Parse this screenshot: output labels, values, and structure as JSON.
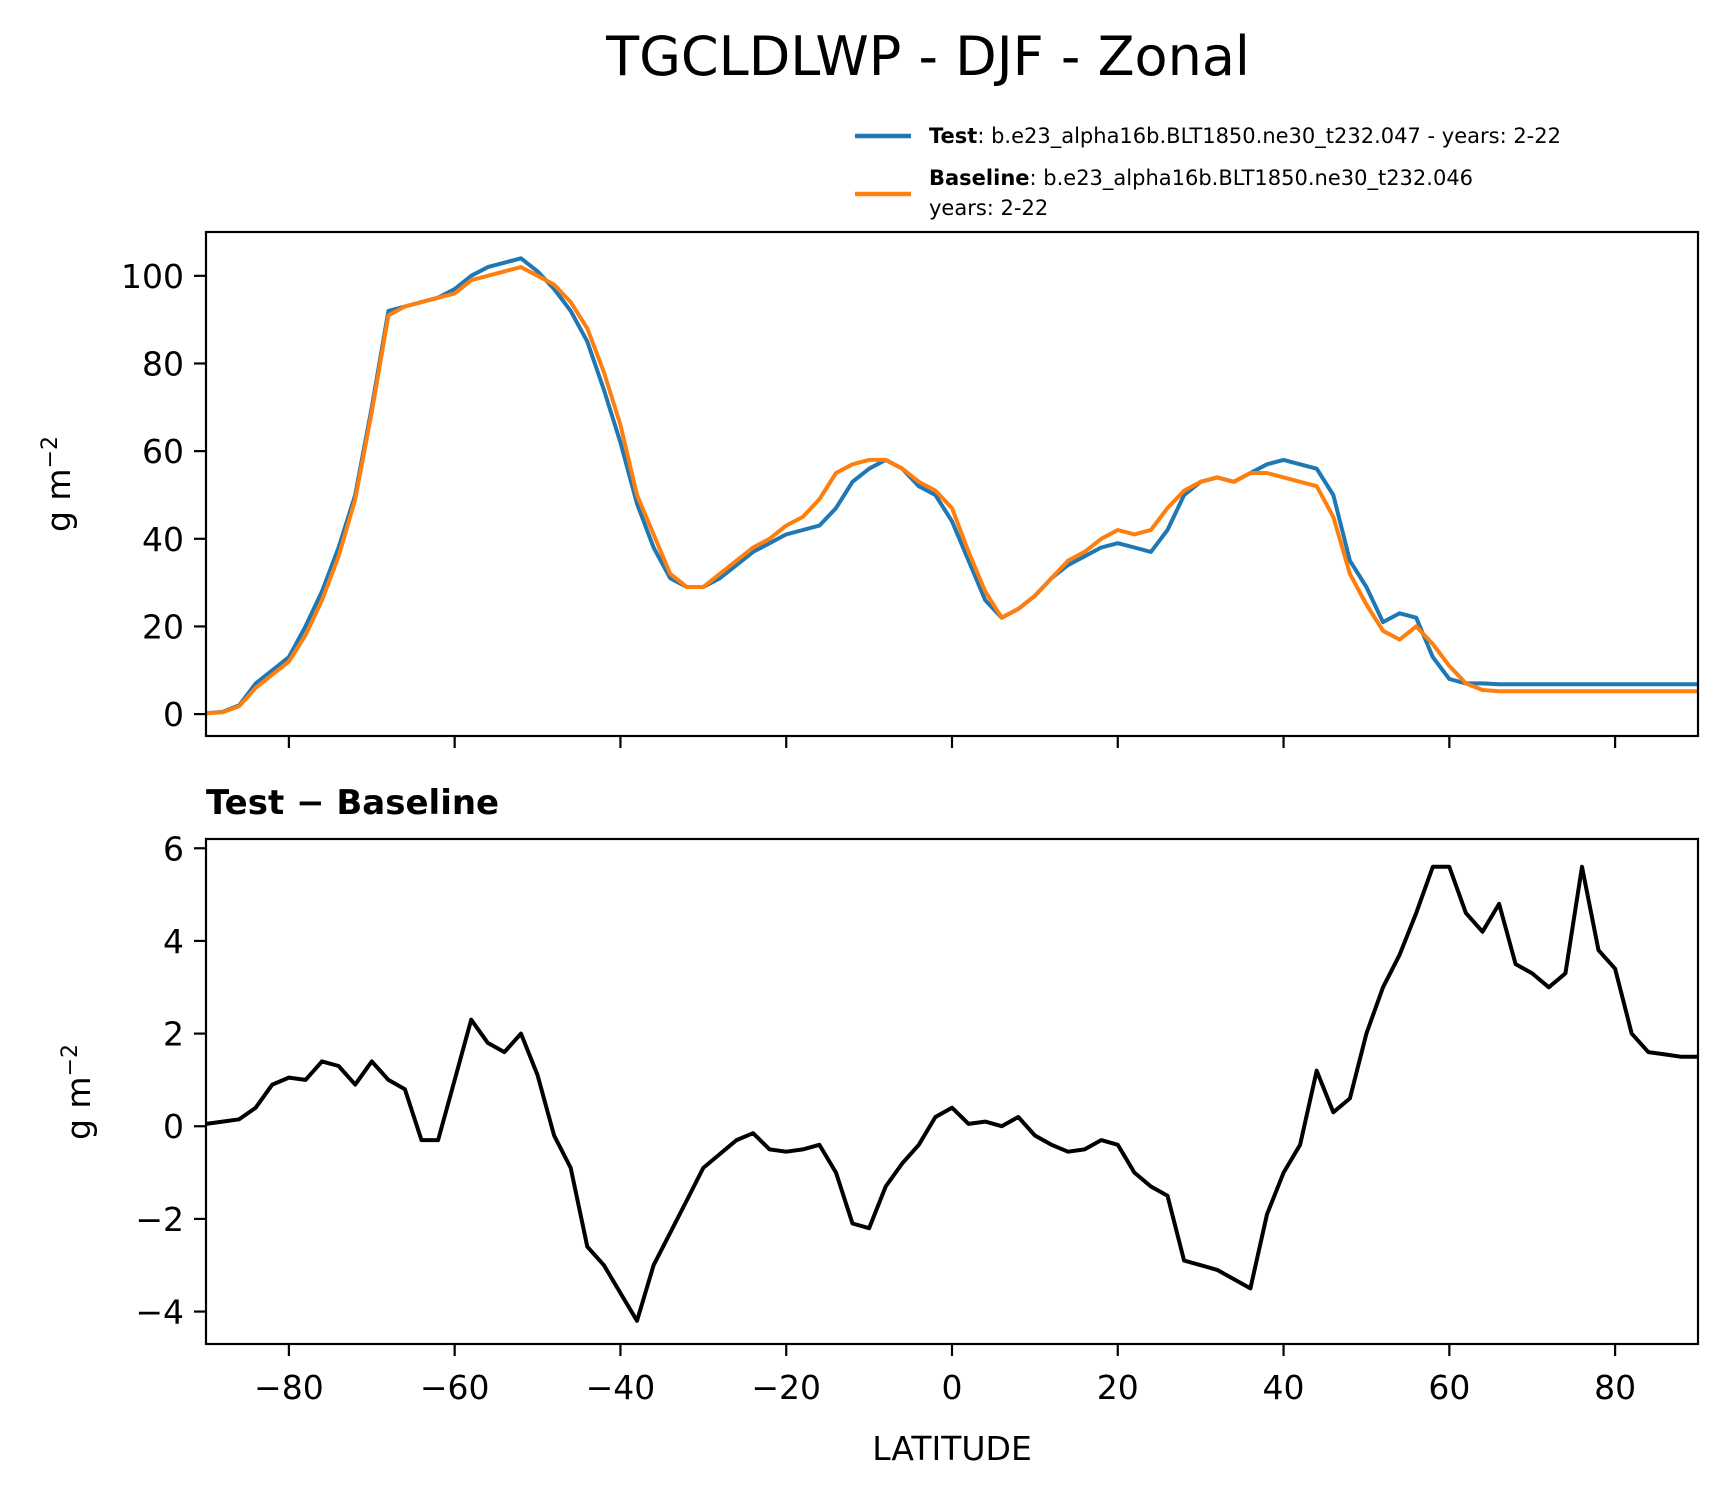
{
  "title": "TGCLDLWP - DJF - Zonal",
  "colors": {
    "test": "#1f77b4",
    "baseline": "#ff7f0e",
    "diff": "#000000"
  },
  "legend": {
    "test": {
      "name": "Test",
      "text": ": b.e23_alpha16b.BLT1850.ne30_t232.047 - years: 2-22"
    },
    "baseline": {
      "name": "Baseline",
      "text": ": b.e23_alpha16b.BLT1850.ne30_t232.046",
      "text2": "years: 2-22"
    }
  },
  "chart_data": [
    {
      "type": "line",
      "panel": "top",
      "title": "TGCLDLWP - DJF - Zonal",
      "xlabel": "",
      "ylabel": "g m-2",
      "xlim": [
        -90,
        90
      ],
      "ylim": [
        -5,
        110
      ],
      "yticks": [
        0,
        20,
        40,
        60,
        80,
        100
      ],
      "ytick_labels": [
        "0",
        "20",
        "40",
        "60",
        "80",
        "100"
      ],
      "x": [
        -90,
        -88,
        -86,
        -84,
        -82,
        -80,
        -78,
        -76,
        -74,
        -72,
        -70,
        -68,
        -66,
        -64,
        -62,
        -60,
        -58,
        -56,
        -54,
        -52,
        -50,
        -48,
        -46,
        -44,
        -42,
        -40,
        -38,
        -36,
        -34,
        -32,
        -30,
        -28,
        -26,
        -24,
        -22,
        -20,
        -18,
        -16,
        -14,
        -12,
        -10,
        -8,
        -6,
        -4,
        -2,
        0,
        2,
        4,
        6,
        8,
        10,
        12,
        14,
        16,
        18,
        20,
        22,
        24,
        26,
        28,
        30,
        32,
        34,
        36,
        38,
        40,
        42,
        44,
        46,
        48,
        50,
        52,
        54,
        56,
        58,
        60,
        62,
        64,
        66,
        68,
        70,
        72,
        74,
        76,
        78,
        80,
        82,
        84,
        86,
        88,
        90
      ],
      "series": [
        {
          "name": "Test",
          "values": [
            0.2,
            0.5,
            2,
            7,
            10,
            13,
            20,
            28,
            38,
            50,
            70,
            92,
            93,
            94,
            95,
            97,
            100,
            102,
            103,
            104,
            101,
            97,
            92,
            85,
            74,
            62,
            48,
            38,
            31,
            29,
            29,
            31,
            34,
            37,
            39,
            41,
            42,
            43,
            47,
            53,
            56,
            58,
            56,
            52,
            50,
            44,
            35,
            26,
            22,
            24,
            27,
            31,
            34,
            36,
            38,
            39,
            38,
            37,
            42,
            50,
            53,
            54,
            53,
            55,
            57,
            58,
            57,
            56,
            50,
            35,
            29,
            21,
            23,
            22,
            13,
            8,
            7,
            7,
            6.8,
            6.8,
            6.8,
            6.8,
            6.8,
            6.8,
            6.8,
            6.8,
            6.8,
            6.8,
            6.8,
            6.8,
            6.8
          ]
        },
        {
          "name": "Baseline",
          "values": [
            0.2,
            0.4,
            1.8,
            6,
            9,
            12,
            18,
            26,
            36,
            49,
            69,
            91,
            93,
            94,
            95,
            96,
            99,
            100,
            101,
            102,
            100,
            98,
            94,
            88,
            78,
            66,
            50,
            41,
            32,
            29,
            29,
            32,
            35,
            38,
            40,
            43,
            45,
            49,
            55,
            57,
            58,
            58,
            56,
            53,
            51,
            47,
            37,
            28,
            22,
            24,
            27,
            31,
            35,
            37,
            40,
            42,
            41,
            42,
            47,
            51,
            53,
            54,
            53,
            55,
            55,
            54,
            53,
            52,
            45,
            32,
            25,
            19,
            17,
            20,
            16,
            11,
            7,
            5.5,
            5.2,
            5.2,
            5.2,
            5.2,
            5.2,
            5.2,
            5.2,
            5.2,
            5.2,
            5.2,
            5.2,
            5.2,
            5.2
          ]
        }
      ]
    },
    {
      "type": "line",
      "panel": "bottom",
      "title": "Test − Baseline",
      "xlabel": "LATITUDE",
      "ylabel": "g m-2",
      "xlim": [
        -90,
        90
      ],
      "ylim": [
        -4.7,
        6.2
      ],
      "xticks": [
        -80,
        -60,
        -40,
        -20,
        0,
        20,
        40,
        60,
        80
      ],
      "xtick_labels": [
        "−80",
        "−60",
        "−40",
        "−20",
        "0",
        "20",
        "40",
        "60",
        "80"
      ],
      "yticks": [
        -4,
        -2,
        0,
        2,
        4,
        6
      ],
      "ytick_labels": [
        "−4",
        "−2",
        "0",
        "2",
        "4",
        "6"
      ],
      "x": [
        -90,
        -88,
        -86,
        -84,
        -82,
        -80,
        -78,
        -76,
        -74,
        -72,
        -70,
        -68,
        -66,
        -64,
        -62,
        -60,
        -58,
        -56,
        -54,
        -52,
        -50,
        -48,
        -46,
        -44,
        -42,
        -40,
        -38,
        -36,
        -34,
        -32,
        -30,
        -28,
        -26,
        -24,
        -22,
        -20,
        -18,
        -16,
        -14,
        -12,
        -10,
        -8,
        -6,
        -4,
        -2,
        0,
        2,
        4,
        6,
        8,
        10,
        12,
        14,
        16,
        18,
        20,
        22,
        24,
        26,
        28,
        30,
        32,
        34,
        36,
        38,
        40,
        42,
        44,
        46,
        48,
        50,
        52,
        54,
        56,
        58,
        60,
        62,
        64,
        66,
        68,
        70,
        72,
        74,
        76,
        78,
        80,
        82,
        84,
        86,
        88,
        90
      ],
      "values": [
        0.05,
        0.1,
        0.15,
        0.4,
        0.9,
        1.05,
        1.0,
        1.4,
        1.3,
        0.9,
        1.4,
        1.0,
        0.8,
        -0.3,
        -0.3,
        1.0,
        2.3,
        1.8,
        1.6,
        2.0,
        1.1,
        -0.2,
        -0.9,
        -2.6,
        -3.0,
        -3.6,
        -4.2,
        -3.0,
        -2.3,
        -1.6,
        -0.9,
        -0.6,
        -0.3,
        -0.15,
        -0.5,
        -0.55,
        -0.5,
        -0.4,
        -1.0,
        -2.1,
        -2.2,
        -1.3,
        -0.8,
        -0.4,
        0.2,
        0.4,
        0.05,
        0.1,
        0.0,
        0.2,
        -0.2,
        -0.4,
        -0.55,
        -0.5,
        -0.3,
        -0.4,
        -1.0,
        -1.3,
        -1.5,
        -2.9,
        -3.0,
        -3.1,
        -3.3,
        -3.5,
        -1.9,
        -1.0,
        -0.4,
        1.2,
        0.3,
        0.6,
        2.0,
        3.0,
        3.7,
        4.6,
        5.6,
        5.6,
        4.6,
        4.2,
        4.8,
        3.5,
        3.3,
        3.0,
        3.3,
        5.6,
        3.8,
        3.4,
        2.0,
        1.6,
        1.55,
        1.5,
        1.5
      ]
    }
  ]
}
